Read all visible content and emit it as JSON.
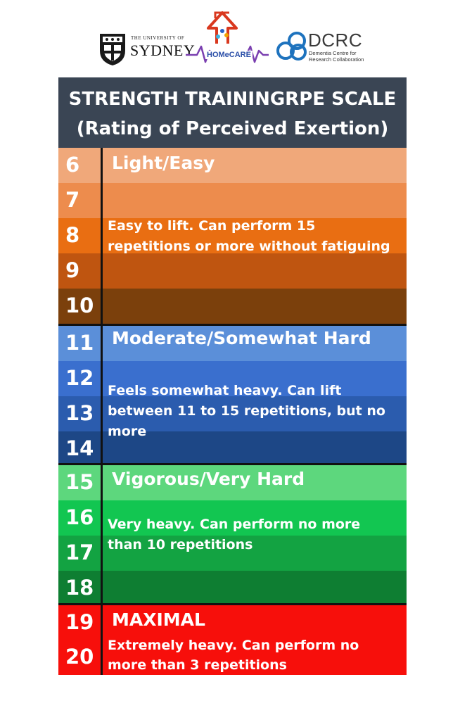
{
  "logos": {
    "usyd_small": "THE UNIVERSITY OF",
    "usyd_big": "SYDNEY",
    "homecare_text": "HOMeCARE",
    "dcrc_name": "DCRC",
    "dcrc_sub_line1": "Dementia Centre for",
    "dcrc_sub_line2": "Research Collaboration"
  },
  "title_line1": "STRENGTH TRAININGRPE SCALE",
  "title_line2": "(Rating of Perceived Exertion)",
  "rows": [
    {
      "n": "6",
      "color": "#f0a87a"
    },
    {
      "n": "7",
      "color": "#ed8c4d"
    },
    {
      "n": "8",
      "color": "#e96e12"
    },
    {
      "n": "9",
      "color": "#bf5510"
    },
    {
      "n": "10",
      "color": "#7b400c"
    },
    {
      "n": "11",
      "color": "#5b8fd9"
    },
    {
      "n": "12",
      "color": "#3a6fce"
    },
    {
      "n": "13",
      "color": "#2b5cae"
    },
    {
      "n": "14",
      "color": "#1d4786"
    },
    {
      "n": "15",
      "color": "#5dd77d"
    },
    {
      "n": "16",
      "color": "#12c651"
    },
    {
      "n": "17",
      "color": "#13a342"
    },
    {
      "n": "18",
      "color": "#0e7e32"
    },
    {
      "n": "19",
      "color": "#f70f0b"
    },
    {
      "n": "20",
      "color": "#f70f0b"
    }
  ],
  "groups": [
    {
      "label": "Light/Easy",
      "desc": "Easy to lift. Can perform 15 repetitions or more without fatiguing"
    },
    {
      "label": "Moderate/Somewhat Hard",
      "desc": "Feels somewhat heavy. Can lift between 11 to 15 repetitions, but no more"
    },
    {
      "label": "Vigorous/Very Hard",
      "desc": "Very heavy. Can perform no more than 10 repetitions"
    },
    {
      "label": "MAXIMAL",
      "desc": "Extremely heavy. Can perform no more than 3 repetitions"
    }
  ]
}
